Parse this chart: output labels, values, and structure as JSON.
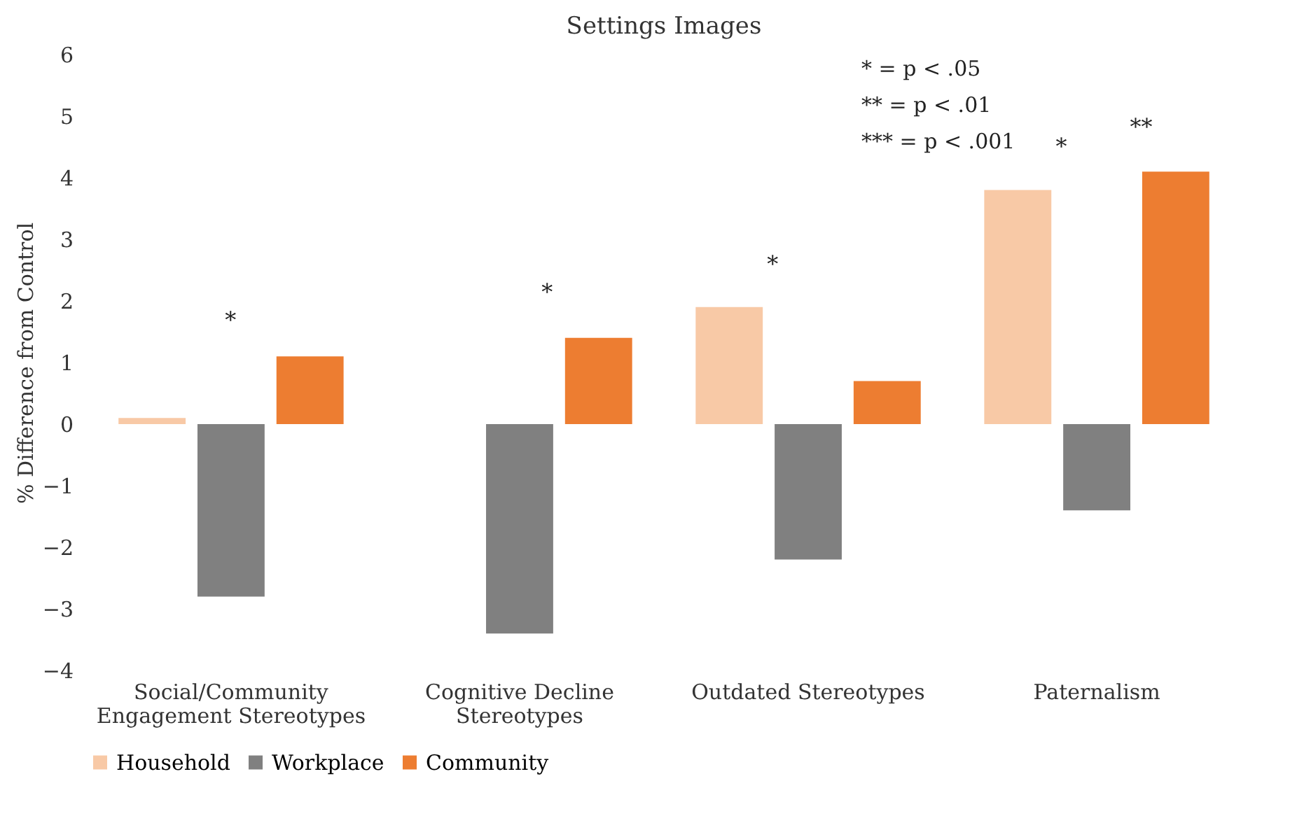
{
  "chart_data": {
    "type": "bar",
    "title": "Settings Images",
    "ylabel": "% Difference from Control",
    "categories": [
      "Social/Community Engagement Stereotypes",
      "Cognitive Decline Stereotypes",
      "Outdated Stereotypes",
      "Paternalism"
    ],
    "series": [
      {
        "name": "Household",
        "color": "#f8c9a6",
        "values": [
          0.1,
          0.0,
          1.9,
          3.8
        ]
      },
      {
        "name": "Workplace",
        "color": "#808080",
        "values": [
          -2.8,
          -3.4,
          -2.2,
          -1.4
        ]
      },
      {
        "name": "Community",
        "color": "#ed7d31",
        "values": [
          1.1,
          1.4,
          0.7,
          4.1
        ]
      }
    ],
    "ylim": [
      -4,
      6
    ],
    "yticks": [
      -4,
      -3,
      -2,
      -1,
      0,
      1,
      2,
      3,
      4,
      5,
      6
    ],
    "grid": false,
    "legend": "bottom",
    "annotations": [
      "*",
      "*",
      "*",
      "*",
      "**",
      "* = p < .05",
      "** = p < .01",
      "*** = p < .001"
    ]
  }
}
